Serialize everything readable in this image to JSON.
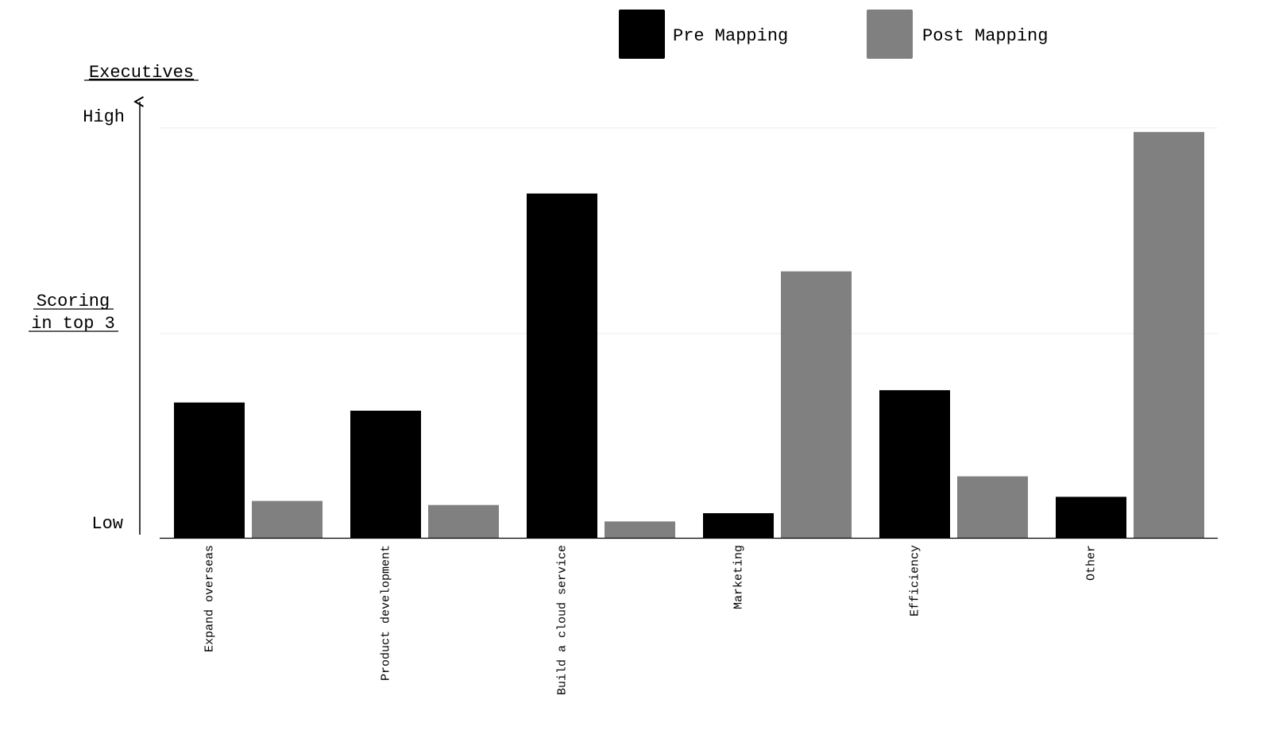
{
  "chart_data": {
    "type": "bar",
    "title": "Executives",
    "ylabel_line1": "Scoring",
    "ylabel_line2": "in top 3",
    "y_tick_high": "High",
    "y_tick_low": "Low",
    "ylim": [
      0,
      100
    ],
    "grid": "horizontal",
    "legend_position": "top-right",
    "categories": [
      "Expand overseas",
      "Product development",
      "Build a cloud service",
      "Marketing",
      "Efficiency",
      "Other"
    ],
    "series": [
      {
        "name": "Pre Mapping",
        "color": "#000000",
        "values": [
          33,
          31,
          84,
          6,
          36,
          10
        ]
      },
      {
        "name": "Post Mapping",
        "color": "#808080",
        "values": [
          9,
          8,
          4,
          65,
          15,
          99
        ]
      }
    ]
  }
}
